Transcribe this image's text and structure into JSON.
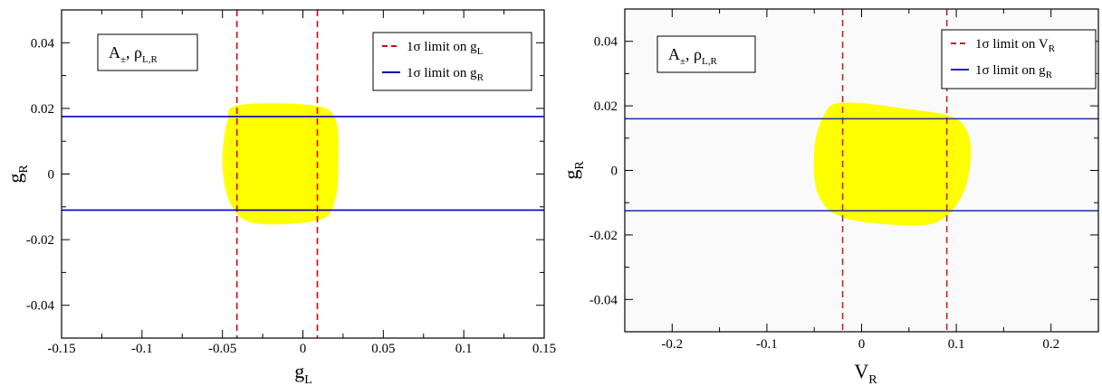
{
  "chart_data": [
    {
      "type": "line",
      "xlabel": "g",
      "xlabel_sub": "L",
      "ylabel": "g",
      "ylabel_sub": "R",
      "xlim": [
        -0.15,
        0.15
      ],
      "ylim": [
        -0.05,
        0.05
      ],
      "xticks": [
        -0.15,
        -0.1,
        -0.05,
        0,
        0.05,
        0.1,
        0.15
      ],
      "xtick_labels": [
        "-0.15",
        "-0.1",
        "-0.05",
        "0",
        "0.05",
        "0.1",
        "0.15"
      ],
      "yticks": [
        -0.04,
        -0.02,
        0,
        0.02,
        0.04
      ],
      "ytick_labels": [
        "-0.04",
        "-0.02",
        "0",
        "0.02",
        "0.04"
      ],
      "grid": false,
      "legend_position": "top-right",
      "annotation": {
        "main": "A",
        "main_sub": "±",
        "sep": ",  ",
        "second": "ρ",
        "second_sub": "L,R"
      },
      "region": {
        "color": "#ffff00",
        "points": [
          [
            -0.04,
            0.021
          ],
          [
            0.005,
            0.021
          ],
          [
            0.02,
            0.017
          ],
          [
            0.022,
            0.004
          ],
          [
            0.02,
            -0.008
          ],
          [
            0.01,
            -0.014
          ],
          [
            -0.03,
            -0.015
          ],
          [
            -0.045,
            -0.009
          ],
          [
            -0.05,
            0.003
          ],
          [
            -0.047,
            0.016
          ]
        ]
      },
      "series": [
        {
          "name": "1σ limit on g",
          "name_sub": "L",
          "orientation": "vertical",
          "values": [
            -0.041,
            0.009
          ],
          "color": "#e00000",
          "style": "dashed"
        },
        {
          "name": "1σ limit on g",
          "name_sub": "R",
          "orientation": "horizontal",
          "values": [
            0.0175,
            -0.011
          ],
          "color": "#0000c0",
          "style": "solid"
        }
      ]
    },
    {
      "type": "line",
      "xlabel": "V",
      "xlabel_sub": "R",
      "ylabel": "g",
      "ylabel_sub": "R",
      "xlim": [
        -0.25,
        0.25
      ],
      "ylim": [
        -0.05,
        0.05
      ],
      "xticks": [
        -0.2,
        -0.1,
        0,
        0.1,
        0.2
      ],
      "xtick_labels": [
        "-0.2",
        "-0.1",
        "0",
        "0.1",
        "0.2"
      ],
      "yticks": [
        -0.04,
        -0.02,
        0,
        0.02,
        0.04
      ],
      "ytick_labels": [
        "-0.04",
        "-0.02",
        "0",
        "0.02",
        "0.04"
      ],
      "grid": false,
      "legend_position": "top-right",
      "annotation": {
        "main": "A",
        "main_sub": "±",
        "sep": ",  ",
        "second": "ρ",
        "second_sub": "L,R"
      },
      "region": {
        "color": "#ffff00",
        "points": [
          [
            -0.02,
            0.021
          ],
          [
            0.05,
            0.019
          ],
          [
            0.1,
            0.016
          ],
          [
            0.115,
            0.008
          ],
          [
            0.11,
            -0.005
          ],
          [
            0.09,
            -0.014
          ],
          [
            0.06,
            -0.017
          ],
          [
            -0.015,
            -0.015
          ],
          [
            -0.045,
            -0.008
          ],
          [
            -0.05,
            0.006
          ],
          [
            -0.04,
            0.017
          ]
        ]
      },
      "series": [
        {
          "name": "1σ limit on V",
          "name_sub": "R",
          "orientation": "vertical",
          "values": [
            -0.02,
            0.09
          ],
          "color": "#cc2222",
          "style": "dashed"
        },
        {
          "name": "1σ limit on g",
          "name_sub": "R",
          "orientation": "horizontal",
          "values": [
            0.016,
            -0.0125
          ],
          "color": "#1a2ea0",
          "style": "solid"
        }
      ]
    }
  ]
}
